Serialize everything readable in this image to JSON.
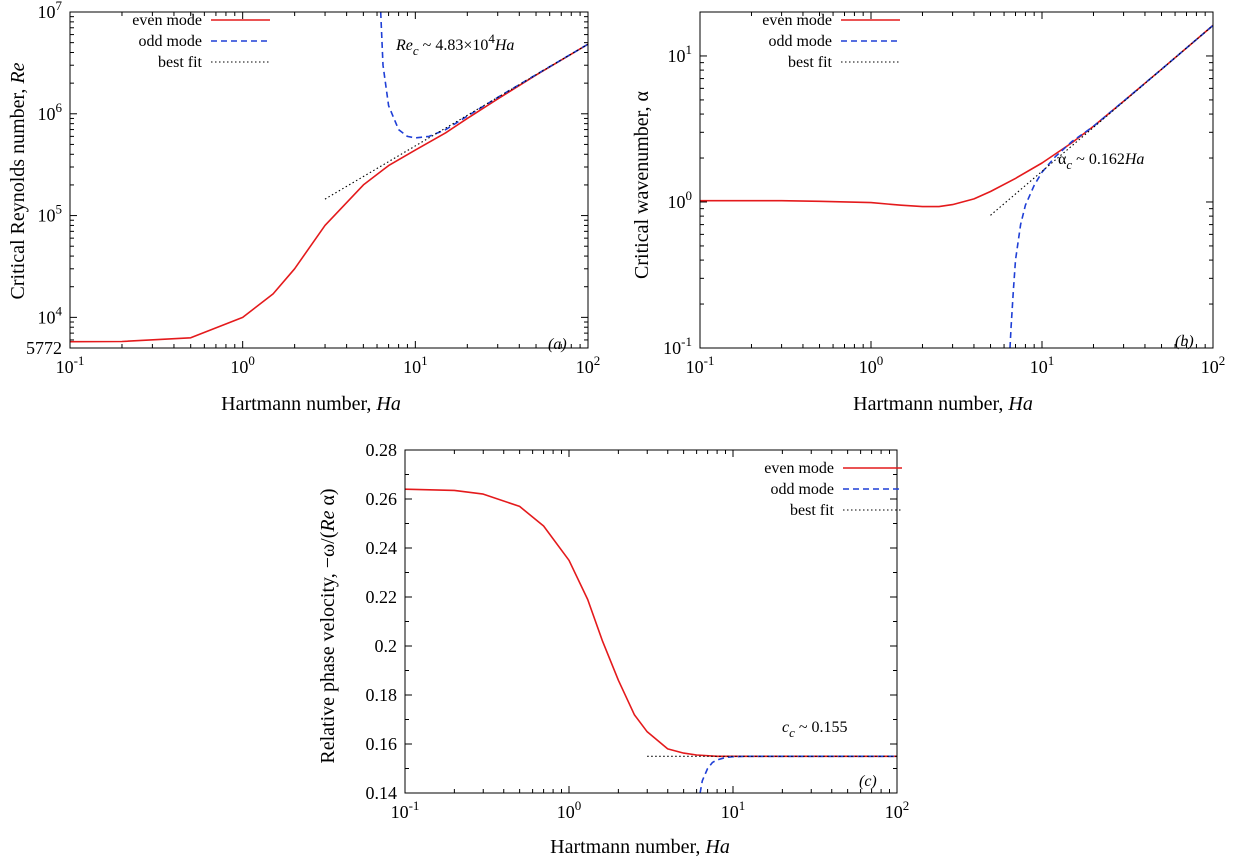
{
  "legend_labels": {
    "even": "even mode",
    "odd": "odd mode",
    "fit": "best fit"
  },
  "colors": {
    "even": "#e41a1c",
    "odd": "#1f3fd6",
    "fit": "#000000"
  },
  "panels": {
    "a": {
      "tag": "(a)",
      "xlabel": {
        "text": "Hartmann number, ",
        "var": "Ha"
      },
      "ylabel": {
        "text": "Critical Reynolds number, ",
        "var": "Re"
      },
      "annotation": {
        "lhs": "Re",
        "sub": "c",
        "mid": " ~ 4.83×10",
        "sup": "4",
        "var": "Ha"
      },
      "extra_tick": "5772"
    },
    "b": {
      "tag": "(b)",
      "xlabel": {
        "text": "Hartmann number, ",
        "var": "Ha"
      },
      "ylabel": {
        "text": "Critical wavenumber, α"
      },
      "annotation": {
        "lhs": "α",
        "sub": "c",
        "mid": " ~ 0.162",
        "var": "Ha"
      }
    },
    "c": {
      "tag": "(c)",
      "xlabel": {
        "text": "Hartmann number, ",
        "var": "Ha"
      },
      "ylabel": {
        "text": "Relative phase velocity, −ω/(",
        "var": "Re",
        "tail": " α)"
      },
      "annotation": {
        "lhs": "c",
        "sub": "c",
        "mid": " ~ 0.155"
      }
    }
  },
  "chart_data": [
    {
      "type": "line",
      "panel": "a",
      "xscale": "log",
      "yscale": "log",
      "xlim": [
        0.1,
        100
      ],
      "ylim": [
        5000,
        10000000
      ],
      "x_ticks": [
        "10^-1",
        "10^0",
        "10^1",
        "10^2"
      ],
      "y_ticks": [
        "10^4",
        "10^5",
        "10^6",
        "10^7"
      ],
      "series": [
        {
          "name": "even mode",
          "x": [
            0.1,
            0.2,
            0.5,
            1,
            1.5,
            2,
            3,
            5,
            7,
            10,
            15,
            20,
            30,
            50,
            100
          ],
          "y": [
            5772,
            5790,
            6300,
            10000,
            17000,
            30000,
            80000,
            200000,
            310000,
            440000,
            650000,
            900000,
            1400000,
            2400000,
            4830000
          ]
        },
        {
          "name": "odd mode",
          "x": [
            6.3,
            6.5,
            7,
            8,
            9,
            10,
            12,
            15,
            20,
            30,
            50,
            100
          ],
          "y": [
            10000000,
            3000000,
            1200000,
            700000,
            600000,
            580000,
            600000,
            700000,
            950000,
            1450000,
            2420000,
            4830000
          ]
        },
        {
          "name": "best fit",
          "x": [
            3,
            100
          ],
          "y": [
            145000,
            4830000
          ]
        }
      ]
    },
    {
      "type": "line",
      "panel": "b",
      "xscale": "log",
      "yscale": "log",
      "xlim": [
        0.1,
        100
      ],
      "ylim": [
        0.1,
        20
      ],
      "x_ticks": [
        "10^-1",
        "10^0",
        "10^1",
        "10^2"
      ],
      "y_ticks": [
        "10^-1",
        "10^0",
        "10^1"
      ],
      "series": [
        {
          "name": "even mode",
          "x": [
            0.1,
            0.3,
            0.5,
            1,
            1.5,
            2,
            2.5,
            3,
            4,
            5,
            7,
            10,
            15,
            20,
            30,
            50,
            100
          ],
          "y": [
            1.02,
            1.02,
            1.01,
            0.99,
            0.95,
            0.93,
            0.93,
            0.96,
            1.05,
            1.18,
            1.45,
            1.85,
            2.55,
            3.3,
            4.9,
            8.1,
            16.2
          ]
        },
        {
          "name": "odd mode",
          "x": [
            6.5,
            6.6,
            6.8,
            7,
            7.5,
            8,
            9,
            10,
            12,
            15,
            20,
            30,
            50,
            100
          ],
          "y": [
            0.1,
            0.14,
            0.25,
            0.4,
            0.7,
            0.95,
            1.3,
            1.6,
            2.05,
            2.6,
            3.3,
            4.9,
            8.1,
            16.2
          ]
        },
        {
          "name": "best fit",
          "x": [
            5,
            100
          ],
          "y": [
            0.81,
            16.2
          ]
        }
      ]
    },
    {
      "type": "line",
      "panel": "c",
      "xscale": "log",
      "yscale": "linear",
      "xlim": [
        0.1,
        100
      ],
      "ylim": [
        0.14,
        0.28
      ],
      "x_ticks": [
        "10^-1",
        "10^0",
        "10^1",
        "10^2"
      ],
      "y_ticks": [
        "0.14",
        "0.16",
        "0.18",
        "0.2",
        "0.22",
        "0.24",
        "0.26",
        "0.28"
      ],
      "series": [
        {
          "name": "even mode",
          "x": [
            0.1,
            0.2,
            0.3,
            0.5,
            0.7,
            1,
            1.3,
            1.6,
            2,
            2.5,
            3,
            4,
            5,
            6,
            8,
            10,
            20,
            50,
            100
          ],
          "y": [
            0.264,
            0.2635,
            0.262,
            0.257,
            0.249,
            0.235,
            0.219,
            0.202,
            0.186,
            0.172,
            0.165,
            0.158,
            0.1563,
            0.1555,
            0.155,
            0.155,
            0.155,
            0.155,
            0.155
          ]
        },
        {
          "name": "odd mode",
          "x": [
            6.3,
            6.5,
            7,
            7.5,
            8,
            9,
            10,
            12,
            15,
            20,
            50,
            100
          ],
          "y": [
            0.14,
            0.145,
            0.15,
            0.1525,
            0.1535,
            0.1545,
            0.1548,
            0.155,
            0.155,
            0.155,
            0.155,
            0.155
          ]
        },
        {
          "name": "best fit",
          "x": [
            3,
            100
          ],
          "y": [
            0.155,
            0.155
          ]
        }
      ]
    }
  ]
}
